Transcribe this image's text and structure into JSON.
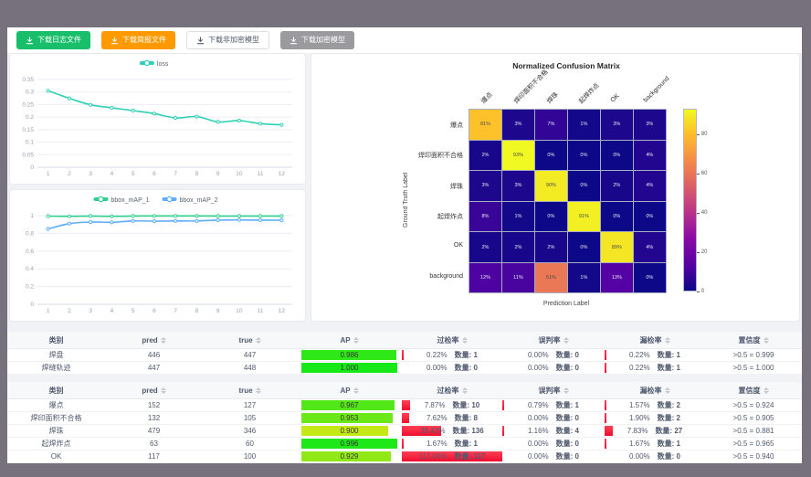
{
  "toolbar": {
    "buttons": [
      {
        "label": "下载日志文件",
        "bg": "#19be6b",
        "fg": "#ffffff",
        "border": "none"
      },
      {
        "label": "下载简报文件",
        "bg": "#ff9900",
        "fg": "#ffffff",
        "border": "none"
      },
      {
        "label": "下载非加密模型",
        "bg": "#ffffff",
        "fg": "#515a6e",
        "border": "1px solid #dcdee2"
      },
      {
        "label": "下载加密模型",
        "bg": "#9a9a9f",
        "fg": "#ffffff",
        "border": "none"
      }
    ]
  },
  "chart_data": [
    {
      "type": "line",
      "title": "",
      "x": [
        1,
        2,
        3,
        4,
        5,
        6,
        7,
        8,
        9,
        10,
        11,
        12
      ],
      "series": [
        {
          "name": "loss",
          "color": "#2ed0b5",
          "values": [
            0.305,
            0.275,
            0.249,
            0.237,
            0.226,
            0.214,
            0.197,
            0.202,
            0.181,
            0.186,
            0.174,
            0.169
          ]
        }
      ],
      "ylim": [
        0,
        0.35
      ],
      "yticks": [
        0,
        0.05,
        0.1,
        0.15,
        0.2,
        0.25,
        0.3,
        0.35
      ],
      "legend_position": "top"
    },
    {
      "type": "line",
      "title": "",
      "x": [
        1,
        2,
        3,
        4,
        5,
        6,
        7,
        8,
        9,
        10,
        11,
        12
      ],
      "series": [
        {
          "name": "bbox_mAP_1",
          "color": "#2fcf8e",
          "values": [
            0.995,
            0.993,
            0.996,
            0.993,
            0.996,
            0.997,
            0.997,
            0.997,
            0.996,
            0.996,
            0.996,
            0.996
          ]
        },
        {
          "name": "bbox_mAP_2",
          "color": "#5cadff",
          "values": [
            0.85,
            0.91,
            0.928,
            0.925,
            0.94,
            0.938,
            0.94,
            0.94,
            0.95,
            0.952,
            0.95,
            0.948
          ]
        }
      ],
      "ylim": [
        0,
        1
      ],
      "yticks": [
        0,
        0.2,
        0.4,
        0.6,
        0.8,
        1
      ],
      "legend_position": "top"
    },
    {
      "type": "heatmap",
      "title": "Normalized Confusion Matrix",
      "xlabel": "Prediction Label",
      "ylabel": "Ground Truth Label",
      "labels": [
        "爆点",
        "焊印面积不合格",
        "焊珠",
        "起焊炸点",
        "OK",
        "background"
      ],
      "matrix": [
        [
          81,
          3,
          7,
          1,
          3,
          3
        ],
        [
          2,
          93,
          0,
          0,
          0,
          4
        ],
        [
          3,
          3,
          90,
          0,
          2,
          4
        ],
        [
          8,
          1,
          0,
          91,
          0,
          0
        ],
        [
          2,
          2,
          2,
          0,
          89,
          4
        ],
        [
          12,
          11,
          61,
          1,
          13,
          0
        ]
      ],
      "unit": "%",
      "vmax": 93,
      "colorbar_ticks": [
        0,
        20,
        40,
        60,
        80
      ],
      "colormap": "plasma"
    }
  ],
  "tables": {
    "qty_label": "数量:",
    "bar_color": "#ef0e2f",
    "groups": [
      {
        "headers": [
          {
            "label": "类别",
            "sortable": false
          },
          {
            "label": "pred",
            "sortable": true
          },
          {
            "label": "true",
            "sortable": true
          },
          {
            "label": "AP",
            "sortable": true
          },
          {
            "label": "过检率",
            "sortable": true
          },
          {
            "label": "误判率",
            "sortable": true
          },
          {
            "label": "漏检率",
            "sortable": true
          },
          {
            "label": "置信度",
            "sortable": true
          }
        ],
        "rows": [
          {
            "cls": "焊盘",
            "pred": "446",
            "true": "447",
            "ap": "0.986",
            "ap_val": 0.986,
            "over_pct": "0.22%",
            "over_n": "1",
            "over_w": 0.22,
            "mis_pct": "0.00%",
            "mis_n": "0",
            "mis_w": 0,
            "miss_pct": "0.22%",
            "miss_n": "1",
            "miss_w": 0.22,
            "conf": ">0.5 = 0.999"
          },
          {
            "cls": "焊缝轨迹",
            "pred": "447",
            "true": "448",
            "ap": "1.000",
            "ap_val": 1.0,
            "over_pct": "0.00%",
            "over_n": "0",
            "over_w": 0,
            "mis_pct": "0.00%",
            "mis_n": "0",
            "mis_w": 0,
            "miss_pct": "0.22%",
            "miss_n": "1",
            "miss_w": 0.22,
            "conf": ">0.5 = 1.000"
          }
        ]
      },
      {
        "headers": [
          {
            "label": "类别",
            "sortable": false
          },
          {
            "label": "pred",
            "sortable": true
          },
          {
            "label": "true",
            "sortable": true
          },
          {
            "label": "AP",
            "sortable": true
          },
          {
            "label": "过检率",
            "sortable": true
          },
          {
            "label": "误判率",
            "sortable": true
          },
          {
            "label": "漏检率",
            "sortable": true
          },
          {
            "label": "置信度",
            "sortable": true
          }
        ],
        "rows": [
          {
            "cls": "爆点",
            "pred": "152",
            "true": "127",
            "ap": "0.967",
            "ap_val": 0.967,
            "over_pct": "7.87%",
            "over_n": "10",
            "over_w": 7.87,
            "mis_pct": "0.79%",
            "mis_n": "1",
            "mis_w": 0.79,
            "miss_pct": "1.57%",
            "miss_n": "2",
            "miss_w": 1.57,
            "conf": ">0.5 = 0.924"
          },
          {
            "cls": "焊印面积不合格",
            "pred": "132",
            "true": "105",
            "ap": "0.953",
            "ap_val": 0.953,
            "over_pct": "7.62%",
            "over_n": "8",
            "over_w": 7.62,
            "mis_pct": "0.00%",
            "mis_n": "0",
            "mis_w": 0,
            "miss_pct": "1.90%",
            "miss_n": "2",
            "miss_w": 1.9,
            "conf": ">0.5 = 0.905"
          },
          {
            "cls": "焊珠",
            "pred": "479",
            "true": "346",
            "ap": "0.900",
            "ap_val": 0.9,
            "over_pct": "39.42%",
            "over_n": "136",
            "over_w": 39.42,
            "mis_pct": "1.16%",
            "mis_n": "4",
            "mis_w": 1.16,
            "miss_pct": "7.83%",
            "miss_n": "27",
            "miss_w": 7.83,
            "conf": ">0.5 = 0.881"
          },
          {
            "cls": "起焊炸点",
            "pred": "63",
            "true": "60",
            "ap": "0.996",
            "ap_val": 0.996,
            "over_pct": "1.67%",
            "over_n": "1",
            "over_w": 1.67,
            "mis_pct": "0.00%",
            "mis_n": "0",
            "mis_w": 0,
            "miss_pct": "1.67%",
            "miss_n": "1",
            "miss_w": 1.67,
            "conf": ">0.5 = 0.965"
          },
          {
            "cls": "OK",
            "pred": "117",
            "true": "100",
            "ap": "0.929",
            "ap_val": 0.929,
            "over_pct": "117.00%",
            "over_n": "117",
            "over_w": 117,
            "mis_pct": "0.00%",
            "mis_n": "0",
            "mis_w": 0,
            "miss_pct": "0.00%",
            "miss_n": "0",
            "miss_w": 0,
            "conf": ">0.5 = 0.940"
          }
        ]
      }
    ]
  }
}
